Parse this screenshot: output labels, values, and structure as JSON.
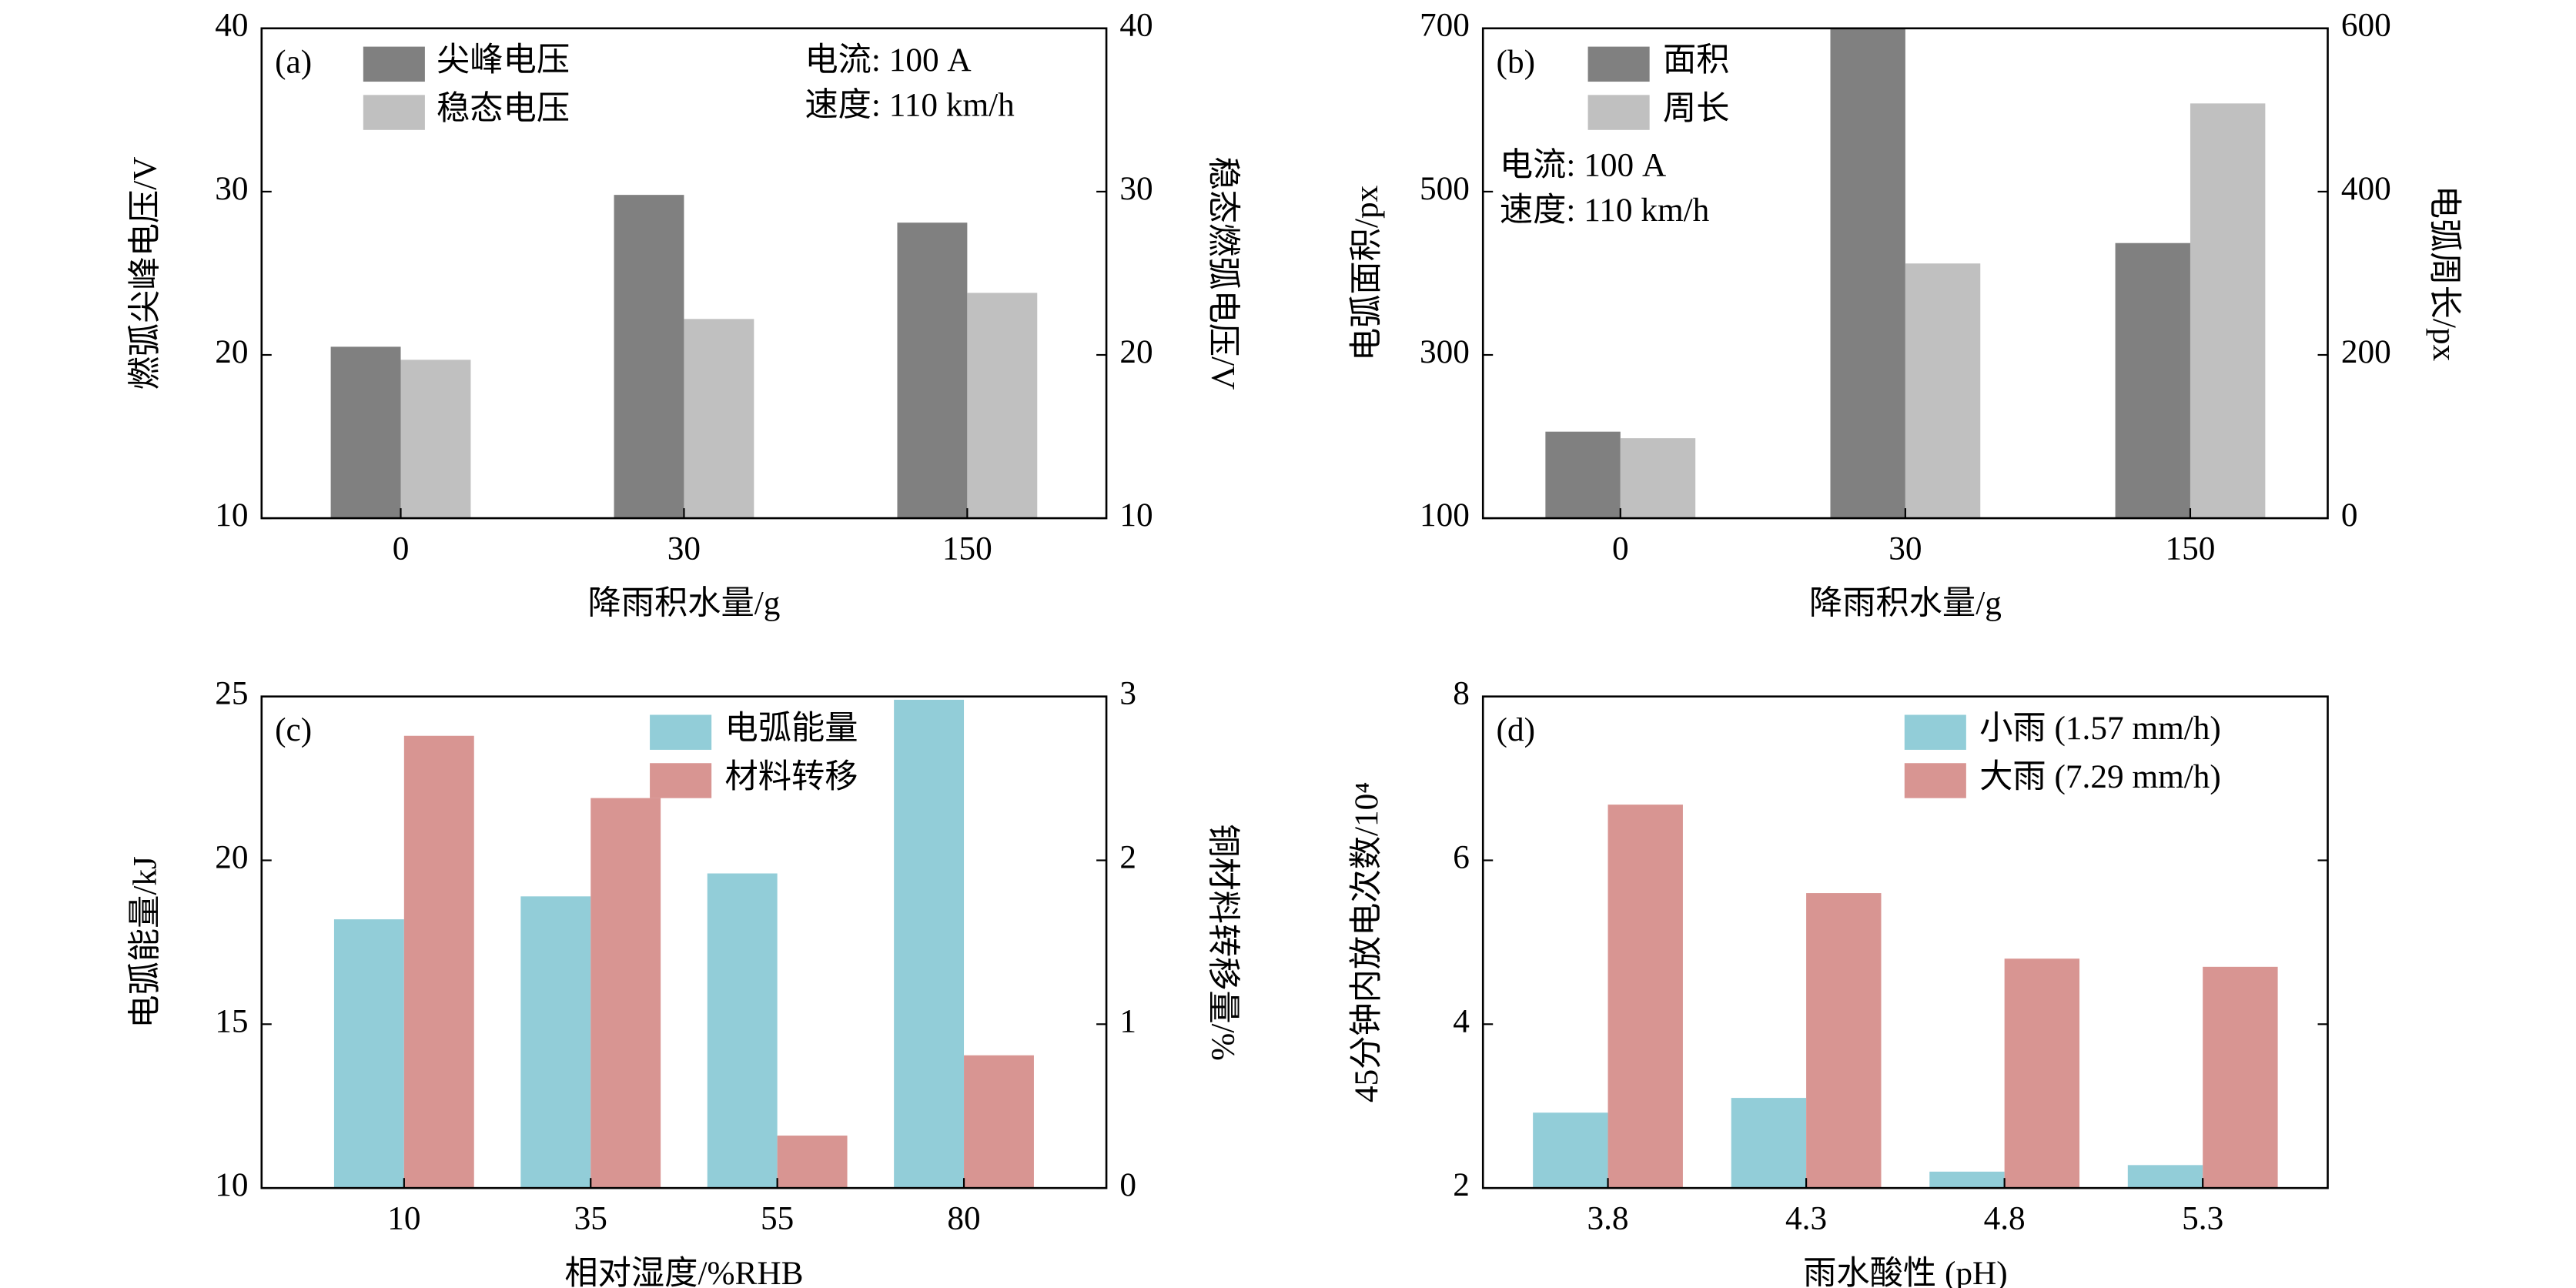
{
  "chart_data": [
    {
      "type": "bar",
      "panel_label": "(a)",
      "xlabel": "降雨积水量/g",
      "ylabel": "燃弧尖峰电压/V",
      "y2label": "稳态燃弧电压/V",
      "categories": [
        "0",
        "30",
        "150"
      ],
      "series": [
        {
          "name": "尖峰电压",
          "color": "#808080",
          "values": [
            20.5,
            29.8,
            28.1
          ]
        },
        {
          "name": "稳态电压",
          "color": "#c0c0c0",
          "values": [
            19.7,
            22.2,
            23.8
          ],
          "axis": "y2"
        }
      ],
      "ylim": [
        10,
        40
      ],
      "yticks": [
        10,
        20,
        30,
        40
      ],
      "y2lim": [
        10,
        40
      ],
      "y2ticks": [
        10,
        20,
        30,
        40
      ],
      "annotations": [
        "电流: 100 A",
        "速度: 110 km/h"
      ]
    },
    {
      "type": "bar",
      "panel_label": "(b)",
      "xlabel": "降雨积水量/g",
      "ylabel": "电弧面积/px",
      "y2label": "电弧周长/px",
      "categories": [
        "0",
        "30",
        "150"
      ],
      "series": [
        {
          "name": "面积",
          "color": "#808080",
          "values": [
            206,
            700,
            437
          ]
        },
        {
          "name": "周长",
          "color": "#c0c0c0",
          "values": [
            98,
            312,
            508
          ],
          "axis": "y2"
        }
      ],
      "ylim": [
        100,
        700
      ],
      "yticks": [
        100,
        300,
        500,
        700
      ],
      "y2lim": [
        0,
        600
      ],
      "y2ticks": [
        0,
        200,
        400,
        600
      ],
      "annotations": [
        "电流: 100 A",
        "速度: 110 km/h"
      ]
    },
    {
      "type": "bar",
      "panel_label": "(c)",
      "xlabel": "相对湿度/%RHB",
      "ylabel": "电弧能量/kJ",
      "y2label": "铜材料转移量/%",
      "categories": [
        "10",
        "35",
        "55",
        "80"
      ],
      "series": [
        {
          "name": "电弧能量",
          "color": "#92cdd8",
          "values": [
            18.2,
            18.9,
            19.6,
            24.9
          ]
        },
        {
          "name": "材料转移",
          "color": "#d89592",
          "values": [
            2.76,
            2.38,
            0.32,
            0.81
          ],
          "axis": "y2"
        }
      ],
      "ylim": [
        10,
        25
      ],
      "yticks": [
        10,
        15,
        20,
        25
      ],
      "y2lim": [
        0,
        3
      ],
      "y2ticks": [
        0,
        1,
        2,
        3
      ]
    },
    {
      "type": "bar",
      "panel_label": "(d)",
      "xlabel": "雨水酸性 (pH)",
      "ylabel": "45分钟内放电次数/10⁴",
      "categories": [
        "3.8",
        "4.3",
        "4.8",
        "5.3"
      ],
      "series": [
        {
          "name": "小雨 (1.57 mm/h)",
          "color": "#92cdd8",
          "values": [
            2.92,
            3.1,
            2.2,
            2.28
          ]
        },
        {
          "name": "大雨 (7.29 mm/h)",
          "color": "#d89592",
          "values": [
            6.68,
            5.6,
            4.8,
            4.7
          ]
        }
      ],
      "ylim": [
        2,
        8
      ],
      "yticks": [
        2,
        4,
        6,
        8
      ]
    }
  ]
}
